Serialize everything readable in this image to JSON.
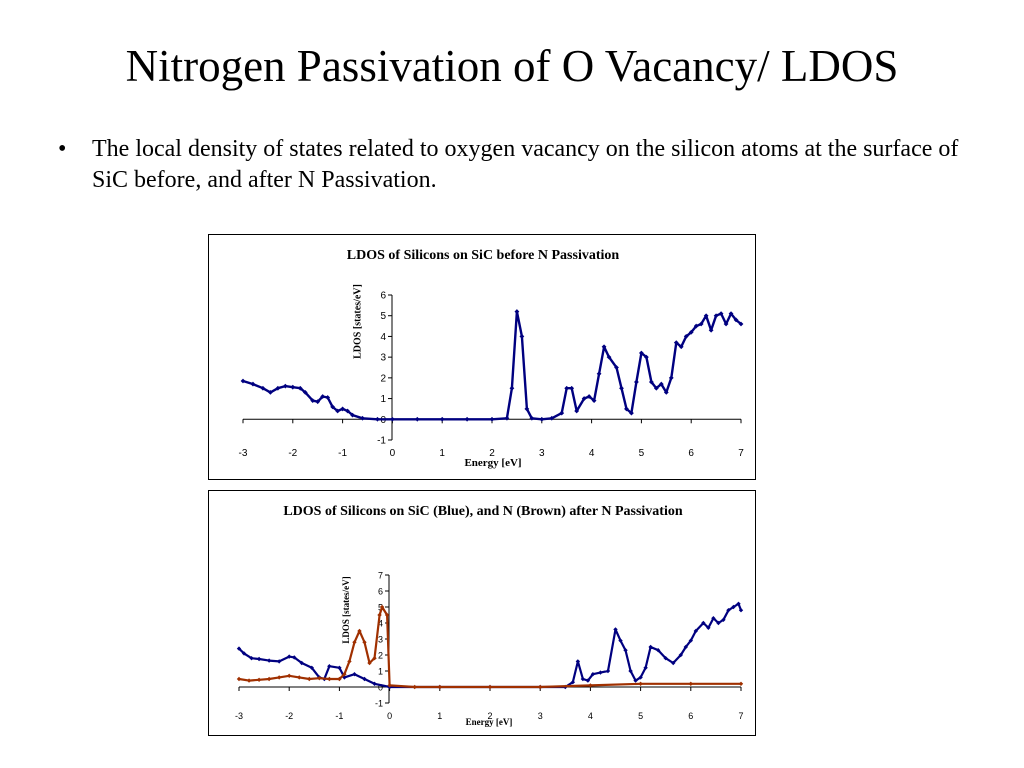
{
  "slide": {
    "title": "Nitrogen Passivation of O Vacancy/ LDOS",
    "bullet_symbol": "•",
    "bullet": "The local density of states related to oxygen vacancy on the silicon atoms at the surface of SiC before, and after N Passivation."
  },
  "chart_data": [
    {
      "type": "line",
      "title": "LDOS of Silicons on SiC before N Passivation",
      "xlabel": "Energy [eV]",
      "ylabel": "LDOS [states/eV]",
      "xlim": [
        -3,
        7
      ],
      "ylim": [
        -1,
        6
      ],
      "x_ticks": [
        "-3",
        "-2",
        "-1",
        "0",
        "1",
        "2",
        "3",
        "4",
        "5",
        "6",
        "7"
      ],
      "y_ticks": [
        "-1",
        "0",
        "1",
        "2",
        "3",
        "4",
        "5",
        "6"
      ],
      "grid": false,
      "legend": "none",
      "series": [
        {
          "color": "#000080",
          "marker": "diamond",
          "points": [
            [
              -3.0,
              1.85
            ],
            [
              -2.8,
              1.7
            ],
            [
              -2.6,
              1.5
            ],
            [
              -2.45,
              1.3
            ],
            [
              -2.3,
              1.5
            ],
            [
              -2.15,
              1.6
            ],
            [
              -2.0,
              1.55
            ],
            [
              -1.85,
              1.5
            ],
            [
              -1.75,
              1.3
            ],
            [
              -1.6,
              0.9
            ],
            [
              -1.5,
              0.85
            ],
            [
              -1.4,
              1.1
            ],
            [
              -1.3,
              1.05
            ],
            [
              -1.2,
              0.6
            ],
            [
              -1.1,
              0.4
            ],
            [
              -1.0,
              0.5
            ],
            [
              -0.9,
              0.4
            ],
            [
              -0.8,
              0.2
            ],
            [
              -0.6,
              0.05
            ],
            [
              -0.3,
              0.0
            ],
            [
              0.0,
              0.0
            ],
            [
              0.5,
              0.0
            ],
            [
              1.0,
              0.0
            ],
            [
              1.5,
              0.0
            ],
            [
              2.0,
              0.0
            ],
            [
              2.3,
              0.05
            ],
            [
              2.4,
              1.5
            ],
            [
              2.5,
              5.2
            ],
            [
              2.6,
              4.0
            ],
            [
              2.7,
              0.5
            ],
            [
              2.8,
              0.05
            ],
            [
              3.0,
              0.0
            ],
            [
              3.2,
              0.05
            ],
            [
              3.4,
              0.3
            ],
            [
              3.5,
              1.5
            ],
            [
              3.6,
              1.5
            ],
            [
              3.7,
              0.4
            ],
            [
              3.85,
              1.0
            ],
            [
              3.95,
              1.1
            ],
            [
              4.05,
              0.9
            ],
            [
              4.15,
              2.2
            ],
            [
              4.25,
              3.5
            ],
            [
              4.35,
              3.0
            ],
            [
              4.5,
              2.5
            ],
            [
              4.6,
              1.5
            ],
            [
              4.7,
              0.5
            ],
            [
              4.8,
              0.3
            ],
            [
              4.9,
              1.8
            ],
            [
              5.0,
              3.2
            ],
            [
              5.1,
              3.0
            ],
            [
              5.2,
              1.8
            ],
            [
              5.3,
              1.5
            ],
            [
              5.4,
              1.7
            ],
            [
              5.5,
              1.3
            ],
            [
              5.6,
              2.0
            ],
            [
              5.7,
              3.7
            ],
            [
              5.8,
              3.5
            ],
            [
              5.9,
              4.0
            ],
            [
              6.0,
              4.2
            ],
            [
              6.1,
              4.5
            ],
            [
              6.2,
              4.6
            ],
            [
              6.3,
              5.0
            ],
            [
              6.4,
              4.3
            ],
            [
              6.5,
              5.0
            ],
            [
              6.6,
              5.1
            ],
            [
              6.7,
              4.6
            ],
            [
              6.8,
              5.1
            ],
            [
              6.9,
              4.8
            ],
            [
              7.0,
              4.6
            ]
          ]
        }
      ]
    },
    {
      "type": "line",
      "title": "LDOS of Silicons on SiC (Blue), and N (Brown) after N Passivation",
      "xlabel": "Energy [eV]",
      "ylabel": "LDOS [states/eV]",
      "xlim": [
        -3,
        7
      ],
      "ylim": [
        -1,
        7
      ],
      "x_ticks": [
        "-3",
        "-2",
        "-1",
        "0",
        "1",
        "2",
        "3",
        "4",
        "5",
        "6",
        "7"
      ],
      "y_ticks": [
        "-1",
        "0",
        "1",
        "2",
        "3",
        "4",
        "5",
        "6",
        "7"
      ],
      "grid": false,
      "legend": "none",
      "series": [
        {
          "color": "#000080",
          "marker": "diamond",
          "points": [
            [
              -3.0,
              2.4
            ],
            [
              -2.9,
              2.1
            ],
            [
              -2.75,
              1.8
            ],
            [
              -2.6,
              1.75
            ],
            [
              -2.4,
              1.65
            ],
            [
              -2.2,
              1.6
            ],
            [
              -2.0,
              1.9
            ],
            [
              -1.9,
              1.85
            ],
            [
              -1.75,
              1.5
            ],
            [
              -1.55,
              1.2
            ],
            [
              -1.4,
              0.6
            ],
            [
              -1.3,
              0.5
            ],
            [
              -1.2,
              1.3
            ],
            [
              -1.0,
              1.2
            ],
            [
              -0.9,
              0.6
            ],
            [
              -0.7,
              0.8
            ],
            [
              -0.5,
              0.5
            ],
            [
              -0.3,
              0.2
            ],
            [
              0.0,
              0.0
            ],
            [
              1.0,
              0.0
            ],
            [
              2.0,
              0.0
            ],
            [
              3.0,
              0.0
            ],
            [
              3.5,
              0.0
            ],
            [
              3.65,
              0.3
            ],
            [
              3.75,
              1.6
            ],
            [
              3.85,
              0.5
            ],
            [
              3.95,
              0.4
            ],
            [
              4.05,
              0.8
            ],
            [
              4.2,
              0.9
            ],
            [
              4.35,
              1.0
            ],
            [
              4.5,
              3.6
            ],
            [
              4.6,
              2.9
            ],
            [
              4.7,
              2.3
            ],
            [
              4.8,
              1.0
            ],
            [
              4.9,
              0.4
            ],
            [
              5.0,
              0.6
            ],
            [
              5.1,
              1.2
            ],
            [
              5.2,
              2.5
            ],
            [
              5.35,
              2.3
            ],
            [
              5.5,
              1.8
            ],
            [
              5.65,
              1.5
            ],
            [
              5.8,
              2.0
            ],
            [
              5.9,
              2.5
            ],
            [
              6.0,
              2.9
            ],
            [
              6.1,
              3.5
            ],
            [
              6.25,
              4.0
            ],
            [
              6.35,
              3.7
            ],
            [
              6.45,
              4.3
            ],
            [
              6.55,
              4.0
            ],
            [
              6.65,
              4.2
            ],
            [
              6.75,
              4.8
            ],
            [
              6.85,
              5.0
            ],
            [
              6.95,
              5.2
            ],
            [
              7.0,
              4.8
            ]
          ]
        },
        {
          "color": "#A03000",
          "marker": "diamond",
          "points": [
            [
              -3.0,
              0.5
            ],
            [
              -2.8,
              0.4
            ],
            [
              -2.6,
              0.45
            ],
            [
              -2.4,
              0.5
            ],
            [
              -2.2,
              0.6
            ],
            [
              -2.0,
              0.7
            ],
            [
              -1.8,
              0.6
            ],
            [
              -1.6,
              0.5
            ],
            [
              -1.4,
              0.55
            ],
            [
              -1.2,
              0.5
            ],
            [
              -1.0,
              0.5
            ],
            [
              -0.9,
              0.8
            ],
            [
              -0.8,
              1.6
            ],
            [
              -0.7,
              2.8
            ],
            [
              -0.6,
              3.5
            ],
            [
              -0.5,
              2.8
            ],
            [
              -0.4,
              1.5
            ],
            [
              -0.3,
              1.8
            ],
            [
              -0.2,
              4.5
            ],
            [
              -0.15,
              5.0
            ],
            [
              -0.05,
              4.5
            ],
            [
              0.0,
              0.1
            ],
            [
              0.5,
              0.0
            ],
            [
              1.0,
              0.0
            ],
            [
              2.0,
              0.0
            ],
            [
              3.0,
              0.0
            ],
            [
              4.0,
              0.1
            ],
            [
              5.0,
              0.2
            ],
            [
              6.0,
              0.2
            ],
            [
              7.0,
              0.2
            ]
          ]
        }
      ]
    }
  ]
}
